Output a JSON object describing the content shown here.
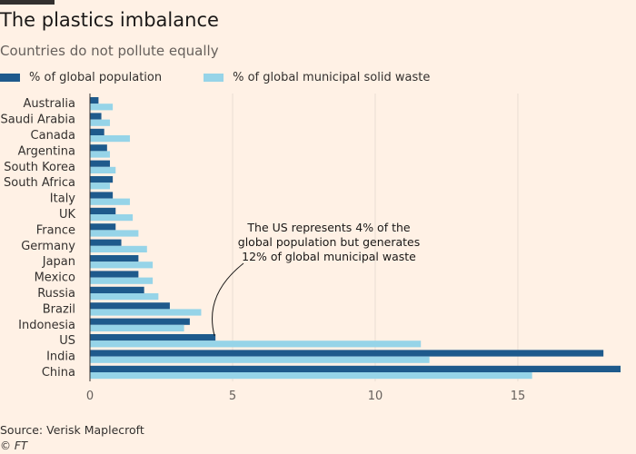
{
  "header": {
    "title": "The plastics imbalance",
    "subtitle": "Countries do not pollute equally"
  },
  "footer": {
    "source": "Source: Verisk Maplecroft",
    "copyright": "© FT"
  },
  "colors": {
    "background": "#fff1e5",
    "population": "#1e5a8c",
    "waste": "#96d4e8",
    "grid": "#e9ddd3"
  },
  "chart_data": {
    "type": "bar",
    "orientation": "horizontal",
    "title": "The plastics imbalance",
    "subtitle": "Countries do not pollute equally",
    "categories": [
      "Australia",
      "Saudi Arabia",
      "Canada",
      "Argentina",
      "South Korea",
      "South Africa",
      "Italy",
      "UK",
      "France",
      "Germany",
      "Japan",
      "Mexico",
      "Russia",
      "Brazil",
      "Indonesia",
      "US",
      "India",
      "China"
    ],
    "series": [
      {
        "name": "% of global population",
        "values": [
          0.3,
          0.4,
          0.5,
          0.6,
          0.7,
          0.8,
          0.8,
          0.9,
          0.9,
          1.1,
          1.7,
          1.7,
          1.9,
          2.8,
          3.5,
          4.4,
          18.0,
          18.6
        ]
      },
      {
        "name": "% of global municipal solid waste",
        "values": [
          0.8,
          0.7,
          1.4,
          0.7,
          0.9,
          0.7,
          1.4,
          1.5,
          1.7,
          2.0,
          2.2,
          2.2,
          2.4,
          3.9,
          3.3,
          11.6,
          11.9,
          15.5
        ]
      }
    ],
    "xlim": [
      0,
      18.6
    ],
    "xticks": [
      0,
      5,
      10,
      15
    ],
    "grid": true,
    "legend_position": "top-left",
    "annotation": {
      "lines": [
        "The US represents 4% of the",
        "global population but generates",
        "12% of global municipal waste"
      ],
      "target_category": "US",
      "target_series": 0
    }
  }
}
